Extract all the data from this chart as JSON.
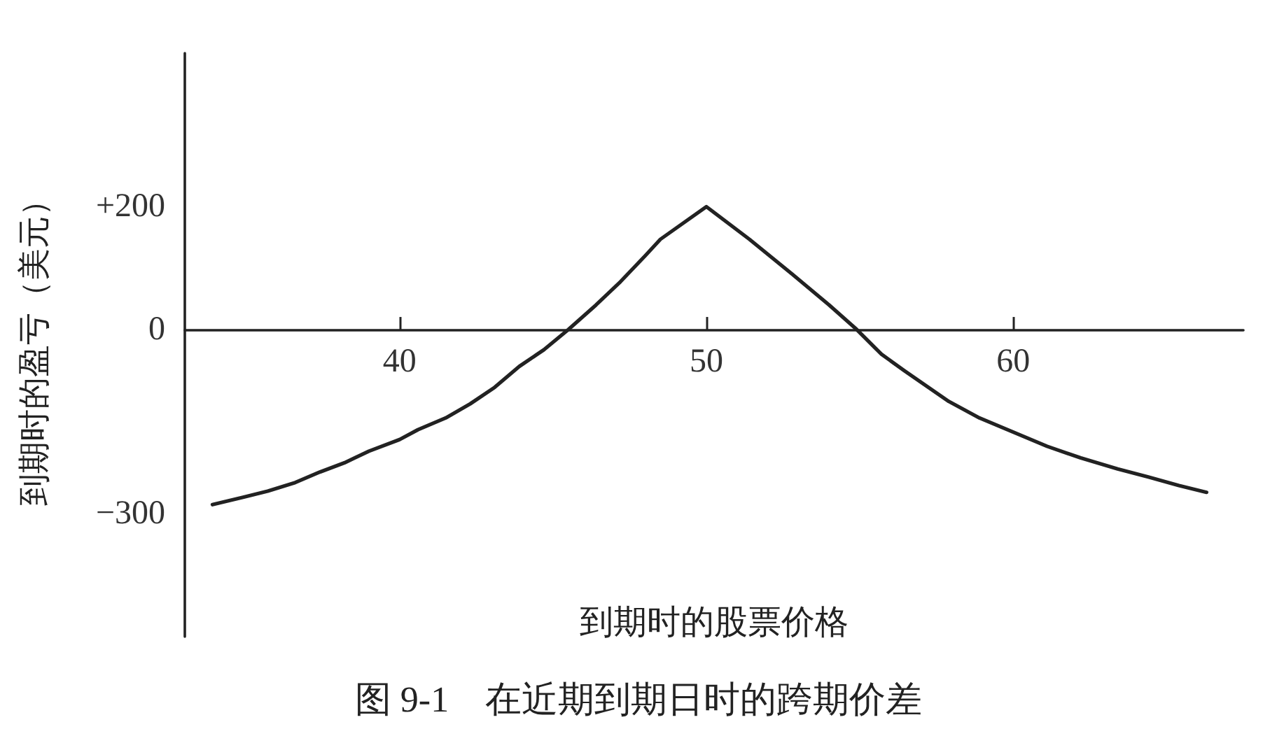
{
  "chart_data": {
    "type": "line",
    "title": "图 9-1　在近期到期日时的跨期价差",
    "xlabel": "到期时的股票价格",
    "ylabel": "到期时的盈亏（美元）",
    "x": [
      33.9,
      34.9,
      35.7,
      36.6,
      37.4,
      38.2,
      39.0,
      40.0,
      40.6,
      41.5,
      42.3,
      43.1,
      43.9,
      44.7,
      45.5,
      46.4,
      47.2,
      48.0,
      48.5,
      50,
      51.4,
      52.8,
      54.0,
      54.9,
      55.7,
      56.45,
      57.9,
      58.9,
      60.0,
      61.1,
      62.2,
      63.4,
      64.4,
      65.4,
      66.3
    ],
    "values": [
      -285,
      -273,
      -263,
      -249,
      -232,
      -217,
      -198,
      -179,
      -163,
      -144,
      -121,
      -94,
      -60,
      -33,
      0,
      40,
      78,
      120,
      147,
      200,
      147,
      90,
      40,
      0,
      -40,
      -67,
      -117,
      -144,
      -167,
      -190,
      -209,
      -227,
      -240,
      -254,
      -265
    ],
    "color": "#222222",
    "marker": "none",
    "line_style": "solid",
    "xlim": [
      33,
      67.5
    ],
    "xticks": [
      40,
      50,
      60
    ],
    "ylim": [
      -500,
      450
    ],
    "yticks": [
      {
        "value": 200,
        "label": "+200"
      },
      0,
      {
        "value": -300,
        "label": "−300"
      }
    ]
  }
}
